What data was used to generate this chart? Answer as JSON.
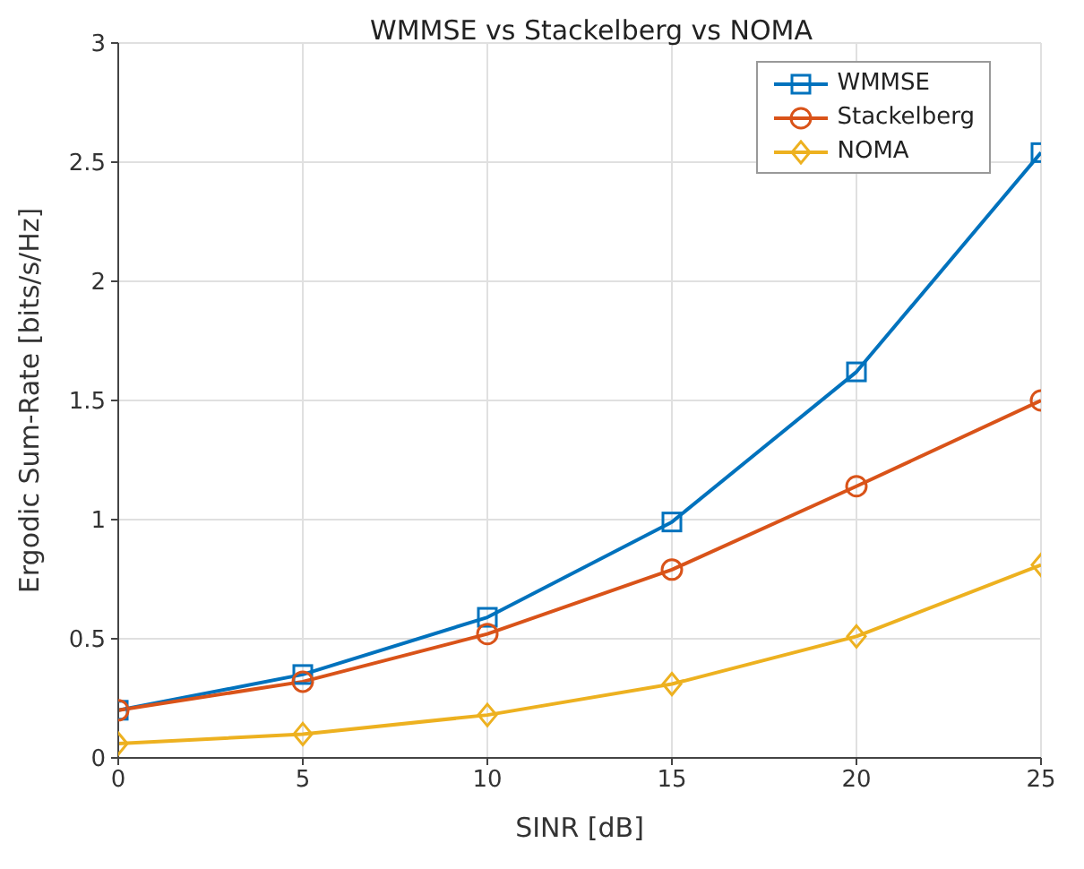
{
  "chart_data": {
    "type": "line",
    "title": "WMMSE vs Stackelberg vs NOMA",
    "xlabel": "SINR [dB]",
    "ylabel": "Ergodic Sum-Rate [bits/s/Hz]",
    "x": [
      0,
      5,
      10,
      15,
      20,
      25
    ],
    "series": [
      {
        "name": "WMMSE",
        "color": "#0072bd",
        "marker": "square",
        "values": [
          0.2,
          0.35,
          0.59,
          0.99,
          1.62,
          2.54
        ]
      },
      {
        "name": "Stackelberg",
        "color": "#d95319",
        "marker": "circle",
        "values": [
          0.2,
          0.32,
          0.52,
          0.79,
          1.14,
          1.5
        ]
      },
      {
        "name": "NOMA",
        "color": "#edb120",
        "marker": "diamond",
        "values": [
          0.06,
          0.1,
          0.18,
          0.31,
          0.51,
          0.81
        ]
      }
    ],
    "xlim": [
      0,
      25
    ],
    "xticks": [
      0,
      5,
      10,
      15,
      20,
      25
    ],
    "ylim": [
      0,
      3
    ],
    "yticks": [
      0,
      0.5,
      1,
      1.5,
      2,
      2.5,
      3
    ],
    "grid": true,
    "legend": "top right",
    "line_style": "solid"
  }
}
